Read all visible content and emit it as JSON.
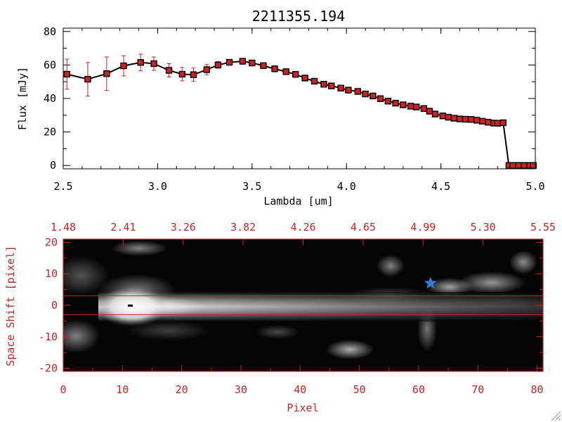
{
  "chart_data": [
    {
      "type": "line",
      "title": "2211355.194",
      "xlabel": "Lambda [um]",
      "ylabel": "Flux [mJy]",
      "xlim": [
        2.5,
        5.0
      ],
      "ylim": [
        -2,
        82
      ],
      "x_ticks": [
        "2.5",
        "3.0",
        "3.5",
        "4.0",
        "4.5",
        "5.0"
      ],
      "y_ticks": [
        "0",
        "20",
        "40",
        "60",
        "80"
      ],
      "line_color": "#000000",
      "marker_color": "#cc2222",
      "errorbar_color": "#cc2222",
      "series": [
        {
          "x": [
            2.52,
            2.63,
            2.73,
            2.82,
            2.91,
            2.98,
            3.06,
            3.13,
            3.19,
            3.26,
            3.32,
            3.38,
            3.45,
            3.5,
            3.56,
            3.62,
            3.68,
            3.73,
            3.78,
            3.83,
            3.88,
            3.92,
            3.97,
            4.01,
            4.06,
            4.1,
            4.14,
            4.18,
            4.22,
            4.26,
            4.3,
            4.34,
            4.37,
            4.41,
            4.44,
            4.47,
            4.51,
            4.54,
            4.57,
            4.6,
            4.63,
            4.66,
            4.69,
            4.72,
            4.75,
            4.78,
            4.8,
            4.83,
            4.86,
            4.88,
            4.91,
            4.94,
            4.97,
            4.99
          ],
          "y": [
            54.5,
            51.5,
            54.8,
            59.5,
            61.5,
            60.8,
            56.8,
            54.5,
            54.2,
            57.2,
            60.0,
            61.6,
            62.2,
            61.2,
            59.6,
            57.7,
            56.0,
            54.4,
            52.2,
            50.3,
            48.5,
            47.5,
            46.2,
            45.0,
            44.2,
            42.7,
            41.5,
            39.9,
            38.4,
            37.2,
            36.2,
            35.4,
            34.9,
            34.0,
            32.4,
            30.7,
            29.6,
            28.8,
            28.2,
            27.8,
            27.6,
            27.5,
            27.0,
            26.4,
            25.8,
            25.3,
            25.2,
            25.5,
            0,
            0,
            0,
            0,
            0,
            0
          ],
          "yerr": [
            9,
            10,
            10,
            6,
            5,
            4,
            4,
            4,
            4,
            3,
            2,
            1,
            1,
            0,
            0,
            0,
            0,
            0,
            0,
            0,
            0,
            0,
            0,
            0,
            0,
            0,
            0,
            0,
            0,
            0,
            0,
            0,
            0,
            0,
            0,
            0,
            0,
            0,
            0,
            0,
            0,
            0,
            0,
            0,
            0,
            0,
            0,
            0,
            0,
            0,
            0,
            0,
            0,
            0
          ]
        }
      ]
    },
    {
      "type": "heatmap",
      "xlabel": "Pixel",
      "ylabel": "Space Shift [pixel]",
      "xlim": [
        0,
        81
      ],
      "ylim": [
        -21,
        21
      ],
      "x_ticks": [
        "0",
        "10",
        "20",
        "30",
        "40",
        "50",
        "60",
        "70",
        "80"
      ],
      "y_ticks": [
        "-20",
        "-10",
        "0",
        "10",
        "20"
      ],
      "top_axis_ticks": [
        "1.48",
        "2.41",
        "3.26",
        "3.82",
        "4.26",
        "4.65",
        "4.99",
        "5.30",
        "5.55"
      ],
      "colormap": "grayscale",
      "axis_color": "#cc2222",
      "extraction_aperture_y": [
        -3,
        3
      ],
      "trace_y": 0,
      "source_marker": {
        "pixel": 62,
        "shift": 7,
        "symbol": "star",
        "color": "#3a78d6"
      }
    }
  ]
}
